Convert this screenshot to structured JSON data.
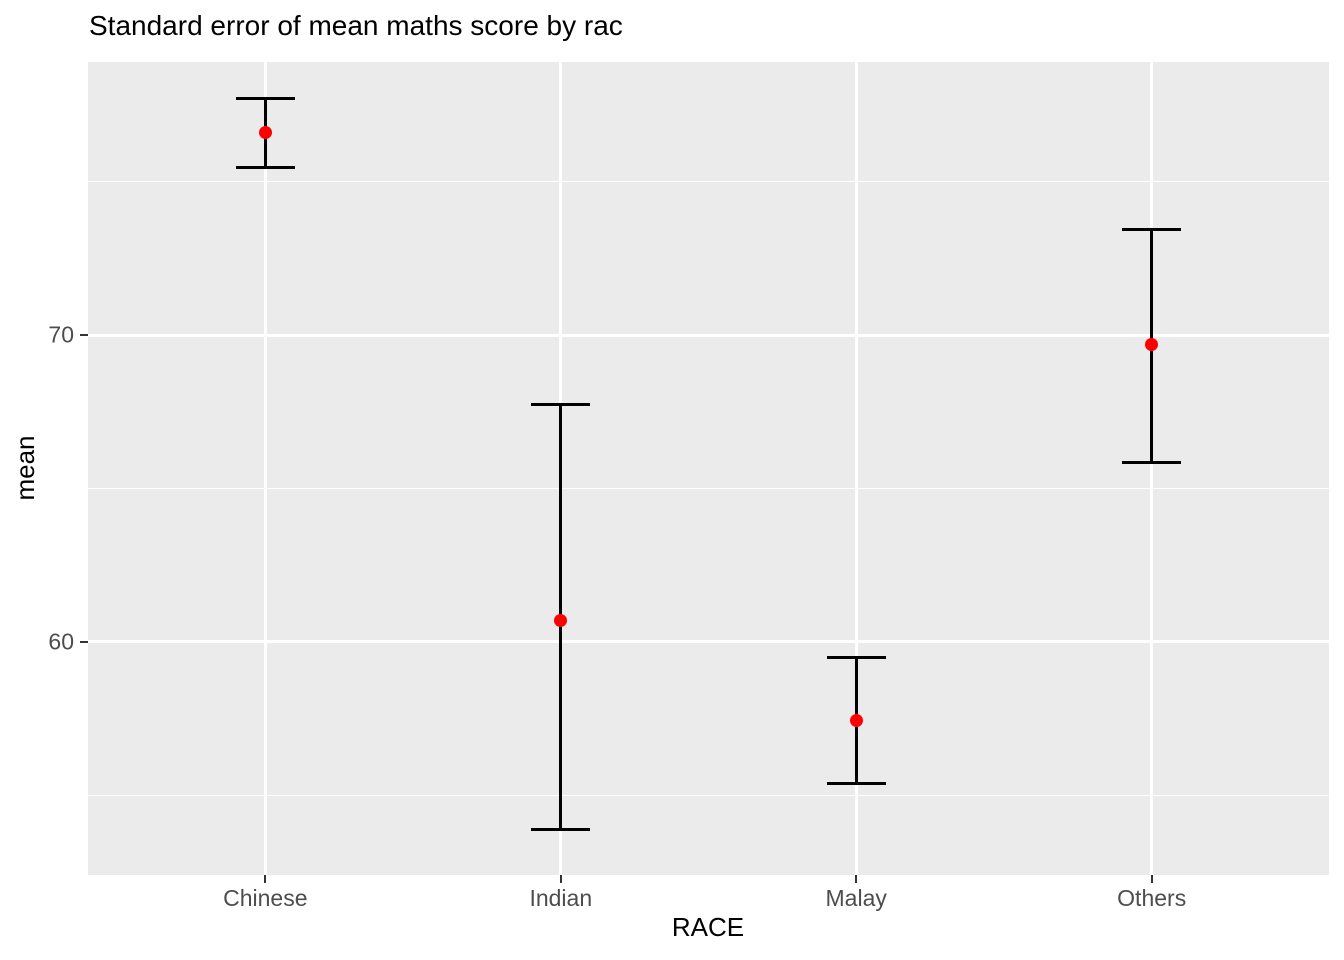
{
  "chart_data": {
    "type": "errorbar",
    "title": "Standard error of mean maths score by rac",
    "xlabel": "RACE",
    "ylabel": "mean",
    "categories": [
      "Chinese",
      "Indian",
      "Malay",
      "Others"
    ],
    "series": [
      {
        "name": "mean maths score with standard error",
        "means": [
          76.6,
          60.7,
          57.45,
          69.7
        ],
        "ymin": [
          75.45,
          53.9,
          55.4,
          65.85
        ],
        "ymax": [
          77.7,
          67.75,
          59.5,
          73.45
        ]
      }
    ],
    "ylim": [
      52.4,
      78.9
    ],
    "yticks_major": [
      60,
      70
    ],
    "yticks_minor": [
      55,
      65,
      75
    ],
    "ytick_labels": [
      "60",
      "70"
    ],
    "grid": "white major and minor horizontal lines, white major vertical lines at categories, shown on grey panel",
    "legend_position": "none",
    "colors": {
      "point": "#ff0000",
      "errorbar": "#000000",
      "panel_background": "#ebebeb",
      "gridline": "#ffffff",
      "tick_text": "#4d4d4d",
      "tick_mark": "#333333",
      "title_text": "#000000",
      "axis_title_text": "#000000",
      "figure_background": "#ffffff"
    }
  }
}
